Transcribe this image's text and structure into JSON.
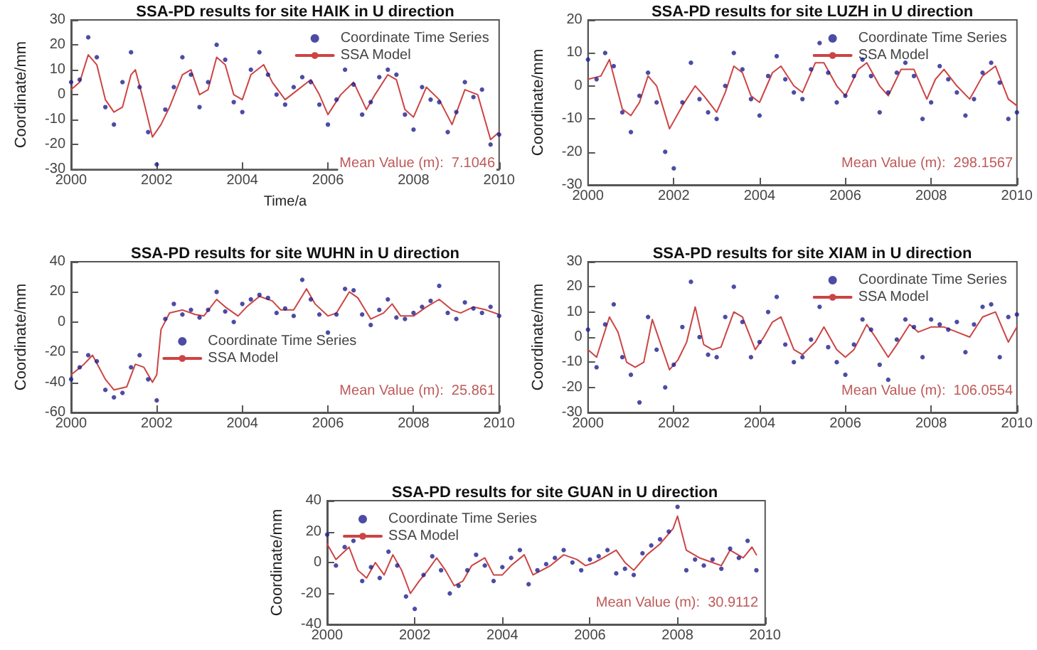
{
  "chart_data": [
    {
      "type": "scatter",
      "title": "SSA-PD results for site HAIK in U direction",
      "ylabel": "Coordinate/mm",
      "xlabel": "Time/a",
      "xlim": [
        2000,
        2010
      ],
      "xticks": [
        2000,
        2002,
        2004,
        2006,
        2008,
        2010
      ],
      "ylim": [
        -30,
        30
      ],
      "yticks": [
        -30,
        -20,
        -10,
        0,
        10,
        20,
        30
      ],
      "legend": "top right",
      "marker": "circle",
      "grid": false,
      "annotations": [
        "Mean Value (m):  7.1046"
      ],
      "series": [
        {
          "name": "Coordinate Time Series",
          "type": "scatter",
          "color": "#1f1f8f",
          "x": [
            2000.0,
            2000.2,
            2000.4,
            2000.6,
            2000.8,
            2001.0,
            2001.2,
            2001.4,
            2001.6,
            2001.8,
            2002.0,
            2002.2,
            2002.4,
            2002.6,
            2002.8,
            2003.0,
            2003.2,
            2003.4,
            2003.6,
            2003.8,
            2004.0,
            2004.2,
            2004.4,
            2004.6,
            2004.8,
            2005.0,
            2005.2,
            2005.4,
            2005.6,
            2005.8,
            2006.0,
            2006.2,
            2006.4,
            2006.6,
            2006.8,
            2007.0,
            2007.2,
            2007.4,
            2007.6,
            2007.8,
            2008.0,
            2008.2,
            2008.4,
            2008.6,
            2008.8,
            2009.0,
            2009.2,
            2009.4,
            2009.6,
            2009.8,
            2010.0
          ],
          "values": [
            5,
            6,
            23,
            15,
            -5,
            -12,
            5,
            17,
            3,
            -15,
            -28,
            -6,
            3,
            15,
            8,
            -5,
            5,
            20,
            14,
            -3,
            -7,
            10,
            17,
            8,
            0,
            -4,
            3,
            7,
            5,
            -4,
            -12,
            -2,
            10,
            4,
            -8,
            -3,
            7,
            10,
            8,
            -8,
            -14,
            3,
            -2,
            -3,
            -15,
            -7,
            5,
            -1,
            2,
            -20,
            -16
          ]
        },
        {
          "name": "SSA Model",
          "type": "line",
          "color": "#cc4444",
          "marker": "none",
          "x": [
            2000.0,
            2000.2,
            2000.4,
            2000.6,
            2000.8,
            2001.0,
            2001.2,
            2001.4,
            2001.5,
            2001.7,
            2001.9,
            2002.1,
            2002.3,
            2002.6,
            2002.8,
            2003.0,
            2003.2,
            2003.4,
            2003.6,
            2003.8,
            2004.0,
            2004.2,
            2004.5,
            2004.7,
            2005.0,
            2005.3,
            2005.6,
            2005.8,
            2006.0,
            2006.3,
            2006.6,
            2006.9,
            2007.1,
            2007.4,
            2007.6,
            2007.8,
            2008.0,
            2008.3,
            2008.6,
            2008.9,
            2009.2,
            2009.5,
            2009.8,
            2010.0
          ],
          "values": [
            2,
            5,
            16,
            12,
            -2,
            -7,
            -5,
            8,
            10,
            -3,
            -17,
            -12,
            -5,
            8,
            10,
            0,
            2,
            15,
            12,
            0,
            -2,
            8,
            12,
            5,
            -2,
            2,
            6,
            0,
            -8,
            0,
            5,
            -6,
            0,
            8,
            6,
            -6,
            -9,
            3,
            -2,
            -12,
            2,
            0,
            -18,
            -15
          ]
        }
      ]
    },
    {
      "type": "scatter",
      "title": "SSA-PD results for site LUZH in U direction",
      "ylabel": "Coordinate/mm",
      "xlim": [
        2000,
        2010
      ],
      "xticks": [
        2000,
        2002,
        2004,
        2006,
        2008,
        2010
      ],
      "ylim": [
        -30,
        20
      ],
      "yticks": [
        -30,
        -20,
        -10,
        0,
        10,
        20
      ],
      "legend": "top right",
      "marker": "circle",
      "grid": false,
      "annotations": [
        "Mean Value (m):  298.1567"
      ],
      "series": [
        {
          "name": "Coordinate Time Series",
          "type": "scatter",
          "color": "#1f1f8f",
          "x": [
            2000.0,
            2000.2,
            2000.4,
            2000.6,
            2000.8,
            2001.0,
            2001.2,
            2001.4,
            2001.6,
            2001.8,
            2002.0,
            2002.2,
            2002.4,
            2002.6,
            2002.8,
            2003.0,
            2003.2,
            2003.4,
            2003.6,
            2003.8,
            2004.0,
            2004.2,
            2004.4,
            2004.6,
            2004.8,
            2005.0,
            2005.2,
            2005.4,
            2005.6,
            2005.8,
            2006.0,
            2006.2,
            2006.4,
            2006.6,
            2006.8,
            2007.0,
            2007.2,
            2007.4,
            2007.6,
            2007.8,
            2008.0,
            2008.2,
            2008.4,
            2008.6,
            2008.8,
            2009.0,
            2009.2,
            2009.4,
            2009.6,
            2009.8,
            2010.0
          ],
          "values": [
            8,
            2,
            10,
            6,
            -8,
            -14,
            -3,
            4,
            -5,
            -20,
            -25,
            -5,
            7,
            -4,
            -8,
            -10,
            0,
            10,
            5,
            -4,
            -9,
            3,
            9,
            2,
            -2,
            -4,
            5,
            13,
            4,
            -5,
            -3,
            3,
            8,
            3,
            -8,
            -2,
            4,
            7,
            3,
            -10,
            -5,
            6,
            2,
            -2,
            -9,
            -4,
            4,
            7,
            1,
            -10,
            -8
          ]
        },
        {
          "name": "SSA Model",
          "type": "line",
          "color": "#cc4444",
          "marker": "none",
          "x": [
            2000.0,
            2000.3,
            2000.5,
            2000.8,
            2001.0,
            2001.2,
            2001.4,
            2001.6,
            2001.9,
            2002.2,
            2002.5,
            2002.7,
            2003.0,
            2003.2,
            2003.4,
            2003.6,
            2003.8,
            2004.0,
            2004.3,
            2004.5,
            2004.8,
            2005.0,
            2005.3,
            2005.5,
            2005.8,
            2006.0,
            2006.3,
            2006.5,
            2006.8,
            2007.0,
            2007.3,
            2007.6,
            2007.9,
            2008.1,
            2008.3,
            2008.6,
            2008.9,
            2009.2,
            2009.5,
            2009.8,
            2010.0
          ],
          "values": [
            2,
            3,
            8,
            -7,
            -9,
            -5,
            3,
            0,
            -13,
            -6,
            0,
            -3,
            -8,
            -2,
            6,
            4,
            -3,
            -5,
            4,
            6,
            0,
            -2,
            7,
            7,
            0,
            -3,
            5,
            7,
            0,
            -3,
            5,
            5,
            -4,
            2,
            5,
            0,
            -4,
            3,
            6,
            -4,
            -6
          ]
        }
      ]
    },
    {
      "type": "scatter",
      "title": "SSA-PD results for site WUHN in U direction",
      "ylabel": "Coordinate/mm",
      "xlim": [
        2000,
        2010
      ],
      "xticks": [
        2000,
        2002,
        2004,
        2006,
        2008,
        2010
      ],
      "ylim": [
        -60,
        40
      ],
      "yticks": [
        -60,
        -40,
        -20,
        0,
        20,
        40
      ],
      "legend": "bottom",
      "marker": "circle",
      "grid": false,
      "annotations": [
        "Mean Value (m):  25.861"
      ],
      "series": [
        {
          "name": "Coordinate Time Series",
          "type": "scatter",
          "color": "#1f1f8f",
          "x": [
            2000.0,
            2000.2,
            2000.4,
            2000.6,
            2000.8,
            2001.0,
            2001.2,
            2001.4,
            2001.6,
            2001.8,
            2002.0,
            2002.2,
            2002.4,
            2002.6,
            2002.8,
            2003.0,
            2003.2,
            2003.4,
            2003.6,
            2003.8,
            2004.0,
            2004.2,
            2004.4,
            2004.6,
            2004.8,
            2005.0,
            2005.2,
            2005.4,
            2005.6,
            2005.8,
            2006.0,
            2006.2,
            2006.4,
            2006.6,
            2006.8,
            2007.0,
            2007.2,
            2007.4,
            2007.6,
            2007.8,
            2008.0,
            2008.2,
            2008.4,
            2008.6,
            2008.8,
            2009.0,
            2009.2,
            2009.4,
            2009.6,
            2009.8,
            2010.0
          ],
          "values": [
            -38,
            -30,
            -22,
            -26,
            -45,
            -50,
            -47,
            -30,
            -22,
            -38,
            -52,
            2,
            12,
            5,
            8,
            3,
            8,
            20,
            7,
            0,
            12,
            15,
            18,
            16,
            6,
            9,
            4,
            28,
            15,
            5,
            -7,
            5,
            22,
            21,
            5,
            -2,
            8,
            15,
            3,
            2,
            6,
            10,
            14,
            24,
            6,
            2,
            13,
            9,
            6,
            10,
            4
          ]
        },
        {
          "name": "SSA Model",
          "type": "line",
          "color": "#cc4444",
          "marker": "none",
          "x": [
            2000.0,
            2000.3,
            2000.5,
            2000.8,
            2001.0,
            2001.3,
            2001.5,
            2001.7,
            2001.9,
            2002.0,
            2002.1,
            2002.3,
            2002.6,
            2002.9,
            2003.1,
            2003.4,
            2003.6,
            2003.9,
            2004.1,
            2004.4,
            2004.7,
            2004.9,
            2005.2,
            2005.5,
            2005.7,
            2006.0,
            2006.2,
            2006.5,
            2006.7,
            2007.0,
            2007.3,
            2007.5,
            2007.7,
            2008.0,
            2008.3,
            2008.6,
            2008.9,
            2009.1,
            2009.4,
            2009.7,
            2010.0
          ],
          "values": [
            -35,
            -28,
            -22,
            -38,
            -45,
            -43,
            -28,
            -30,
            -40,
            -35,
            -5,
            6,
            8,
            5,
            4,
            15,
            10,
            4,
            10,
            17,
            14,
            8,
            8,
            22,
            12,
            4,
            6,
            20,
            16,
            2,
            6,
            12,
            4,
            4,
            10,
            15,
            8,
            6,
            10,
            8,
            5
          ]
        }
      ]
    },
    {
      "type": "scatter",
      "title": "SSA-PD results for site XIAM in U direction",
      "ylabel": "Coordinate/mm",
      "xlim": [
        2000,
        2010
      ],
      "xticks": [
        2000,
        2002,
        2004,
        2006,
        2008,
        2010
      ],
      "ylim": [
        -30,
        30
      ],
      "yticks": [
        -30,
        -20,
        -10,
        0,
        10,
        20,
        30
      ],
      "legend": "top right",
      "marker": "circle",
      "grid": false,
      "annotations": [
        "Mean Value (m):  106.0554"
      ],
      "series": [
        {
          "name": "Coordinate Time Series",
          "type": "scatter",
          "color": "#1f1f8f",
          "x": [
            2000.0,
            2000.2,
            2000.4,
            2000.6,
            2000.8,
            2001.0,
            2001.2,
            2001.4,
            2001.6,
            2001.8,
            2002.0,
            2002.2,
            2002.4,
            2002.6,
            2002.8,
            2003.0,
            2003.2,
            2003.4,
            2003.6,
            2003.8,
            2004.0,
            2004.2,
            2004.4,
            2004.6,
            2004.8,
            2005.0,
            2005.2,
            2005.4,
            2005.6,
            2005.8,
            2006.0,
            2006.2,
            2006.4,
            2006.6,
            2006.8,
            2007.0,
            2007.2,
            2007.4,
            2007.6,
            2007.8,
            2008.0,
            2008.2,
            2008.4,
            2008.6,
            2008.8,
            2009.0,
            2009.2,
            2009.4,
            2009.6,
            2009.8,
            2010.0
          ],
          "values": [
            3,
            -12,
            5,
            13,
            -8,
            -15,
            -26,
            8,
            -5,
            -20,
            -11,
            4,
            22,
            0,
            -7,
            -8,
            8,
            20,
            6,
            -8,
            -2,
            10,
            16,
            -3,
            -10,
            -8,
            -1,
            12,
            -4,
            -10,
            -15,
            -3,
            7,
            3,
            -11,
            -17,
            -1,
            7,
            4,
            -8,
            7,
            5,
            3,
            6,
            -6,
            5,
            12,
            13,
            -8,
            8,
            9
          ]
        },
        {
          "name": "SSA Model",
          "type": "line",
          "color": "#cc4444",
          "marker": "none",
          "x": [
            2000.0,
            2000.2,
            2000.5,
            2000.7,
            2000.9,
            2001.1,
            2001.3,
            2001.5,
            2001.7,
            2001.9,
            2002.1,
            2002.3,
            2002.5,
            2002.7,
            2002.9,
            2003.1,
            2003.4,
            2003.6,
            2003.9,
            2004.1,
            2004.3,
            2004.5,
            2004.8,
            2005.0,
            2005.3,
            2005.5,
            2005.8,
            2006.0,
            2006.2,
            2006.5,
            2006.7,
            2007.0,
            2007.2,
            2007.5,
            2007.7,
            2008.0,
            2008.3,
            2008.6,
            2008.9,
            2009.2,
            2009.5,
            2009.8,
            2010.0
          ],
          "values": [
            -5,
            -8,
            8,
            2,
            -10,
            -12,
            -10,
            7,
            -3,
            -13,
            -9,
            -2,
            12,
            -3,
            -5,
            -4,
            10,
            8,
            -5,
            0,
            6,
            8,
            -5,
            -7,
            -2,
            4,
            -5,
            -8,
            -5,
            5,
            0,
            -8,
            -3,
            5,
            2,
            4,
            4,
            2,
            0,
            8,
            10,
            -2,
            4
          ]
        }
      ]
    },
    {
      "type": "scatter",
      "title": "SSA-PD results for site GUAN in U direction",
      "ylabel": "Coordinate/mm",
      "xlim": [
        2000,
        2010
      ],
      "xticks": [
        2000,
        2002,
        2004,
        2006,
        2008,
        2010
      ],
      "ylim": [
        -40,
        40
      ],
      "yticks": [
        -40,
        -20,
        0,
        20,
        40
      ],
      "legend": "top left",
      "marker": "circle",
      "grid": false,
      "annotations": [
        "Mean Value (m):  30.9112"
      ],
      "series": [
        {
          "name": "Coordinate Time Series",
          "type": "scatter",
          "color": "#1f1f8f",
          "x": [
            2000.0,
            2000.2,
            2000.4,
            2000.6,
            2000.8,
            2001.0,
            2001.2,
            2001.4,
            2001.6,
            2001.8,
            2002.0,
            2002.2,
            2002.4,
            2002.6,
            2002.8,
            2003.0,
            2003.2,
            2003.4,
            2003.6,
            2003.8,
            2004.0,
            2004.2,
            2004.4,
            2004.6,
            2004.8,
            2005.0,
            2005.2,
            2005.4,
            2005.6,
            2005.8,
            2006.0,
            2006.2,
            2006.4,
            2006.6,
            2006.8,
            2007.0,
            2007.2,
            2007.4,
            2007.6,
            2007.8,
            2008.0,
            2008.2,
            2008.4,
            2008.6,
            2008.8,
            2009.0,
            2009.2,
            2009.4,
            2009.6,
            2009.8
          ],
          "values": [
            18,
            -2,
            10,
            14,
            -12,
            -3,
            -10,
            7,
            -2,
            -22,
            -30,
            -8,
            4,
            -5,
            -20,
            -15,
            -5,
            5,
            -2,
            -12,
            -3,
            3,
            8,
            -14,
            -5,
            -1,
            3,
            8,
            0,
            -5,
            2,
            4,
            8,
            -7,
            -4,
            -8,
            6,
            11,
            15,
            20,
            36,
            -5,
            2,
            -2,
            2,
            -4,
            9,
            3,
            14,
            -5
          ]
        },
        {
          "name": "SSA Model",
          "type": "line",
          "color": "#cc4444",
          "marker": "none",
          "x": [
            2000.0,
            2000.2,
            2000.5,
            2000.7,
            2000.9,
            2001.1,
            2001.3,
            2001.5,
            2001.7,
            2001.9,
            2002.1,
            2002.3,
            2002.5,
            2002.7,
            2002.9,
            2003.1,
            2003.3,
            2003.6,
            2003.8,
            2004.0,
            2004.2,
            2004.5,
            2004.7,
            2004.9,
            2005.1,
            2005.4,
            2005.7,
            2005.9,
            2006.1,
            2006.3,
            2006.6,
            2006.8,
            2007.0,
            2007.3,
            2007.6,
            2007.9,
            2008.0,
            2008.2,
            2008.5,
            2008.8,
            2009.0,
            2009.2,
            2009.5,
            2009.7,
            2009.8
          ],
          "values": [
            12,
            2,
            10,
            -5,
            -10,
            0,
            -8,
            5,
            -5,
            -20,
            -12,
            -5,
            3,
            -5,
            -15,
            -12,
            -2,
            3,
            -8,
            -8,
            -2,
            5,
            -8,
            -5,
            -2,
            5,
            2,
            -2,
            0,
            3,
            8,
            0,
            -5,
            5,
            12,
            22,
            30,
            8,
            3,
            0,
            -2,
            8,
            3,
            10,
            5
          ]
        }
      ]
    }
  ]
}
